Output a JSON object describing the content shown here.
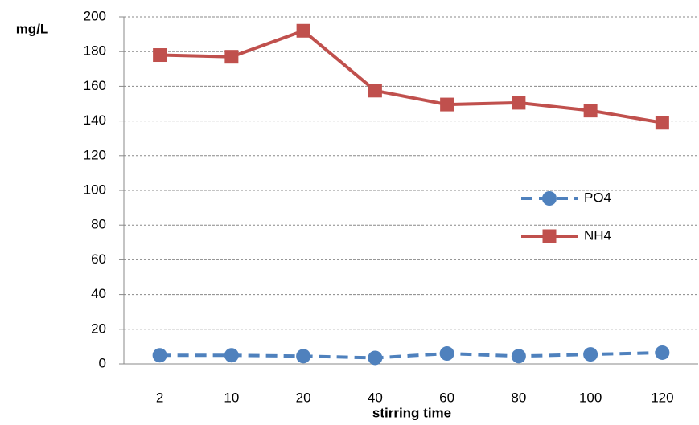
{
  "chart_data": {
    "type": "line",
    "y_label": "mg/L",
    "x_label": "stirring time",
    "categories": [
      "2",
      "10",
      "20",
      "40",
      "60",
      "80",
      "100",
      "120"
    ],
    "series": [
      {
        "name": "PO4",
        "color": "#4f81bd",
        "dashed": true,
        "marker": "circle",
        "values": [
          5,
          5,
          4.5,
          3.5,
          6,
          4.5,
          5.5,
          6.5
        ]
      },
      {
        "name": "NH4",
        "color": "#c0504d",
        "dashed": false,
        "marker": "square",
        "values": [
          178,
          177,
          192,
          157.5,
          149.5,
          150.5,
          146,
          139
        ]
      }
    ],
    "ylim": [
      0,
      200
    ],
    "yticks": [
      0,
      20,
      40,
      60,
      80,
      100,
      120,
      140,
      160,
      180,
      200
    ],
    "grid": true
  }
}
